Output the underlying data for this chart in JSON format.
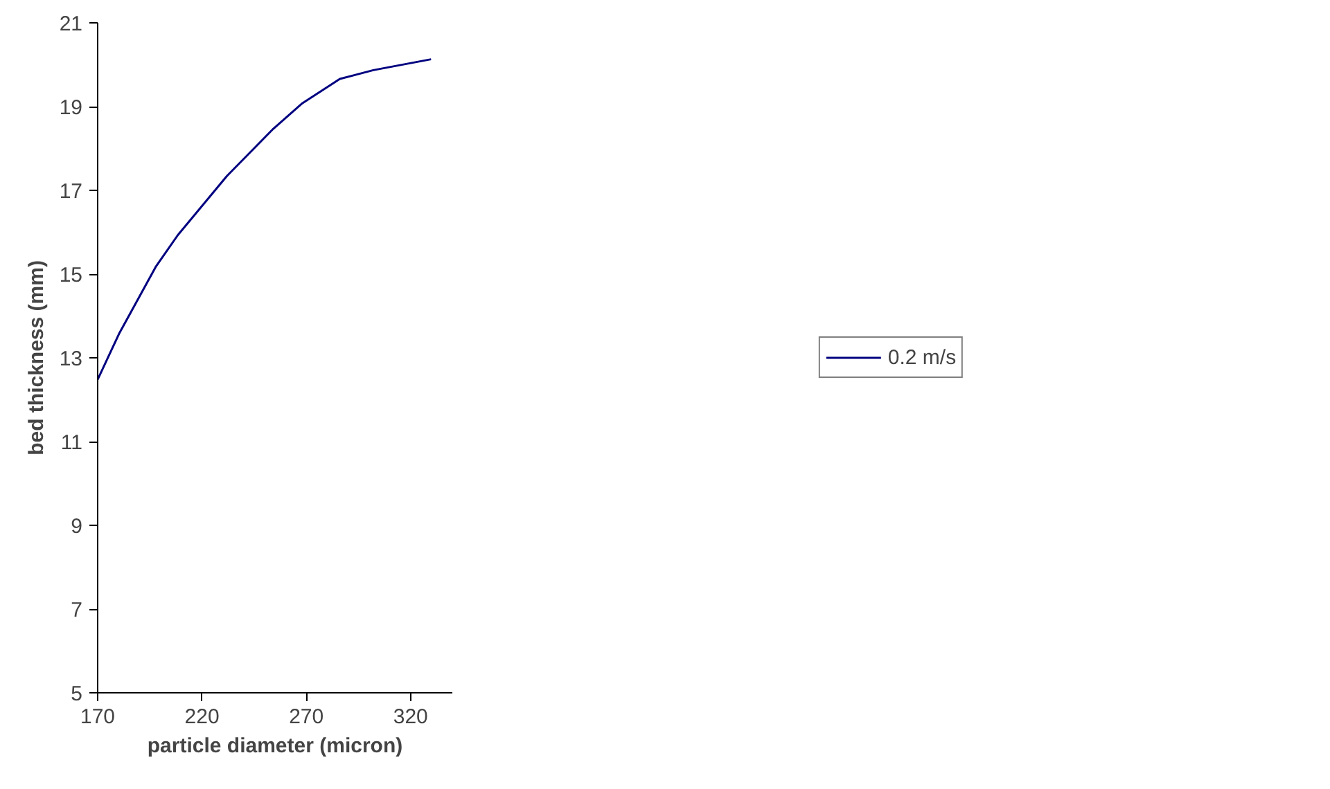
{
  "chart_data": {
    "type": "line",
    "xlabel": "particle diameter (micron)",
    "ylabel": "bed thickness (mm)",
    "x": [
      170,
      180.2,
      197.8,
      208.4,
      231.9,
      254.2,
      268.1,
      286.1,
      302.1,
      329.8
    ],
    "series": [
      {
        "name": "0.2 m/s",
        "color": "#000080",
        "values": [
          12.48,
          13.57,
          15.17,
          15.93,
          17.34,
          18.47,
          19.08,
          19.66,
          19.87,
          20.13
        ]
      }
    ],
    "xlim": [
      170,
      340
    ],
    "xticks": [
      170,
      220,
      270,
      320
    ],
    "ylim": [
      5,
      21
    ],
    "yticks": [
      5,
      7,
      9,
      11,
      13,
      15,
      17,
      19,
      21
    ],
    "grid": false,
    "legend": "right",
    "marker": "none",
    "line_style": "solid"
  }
}
